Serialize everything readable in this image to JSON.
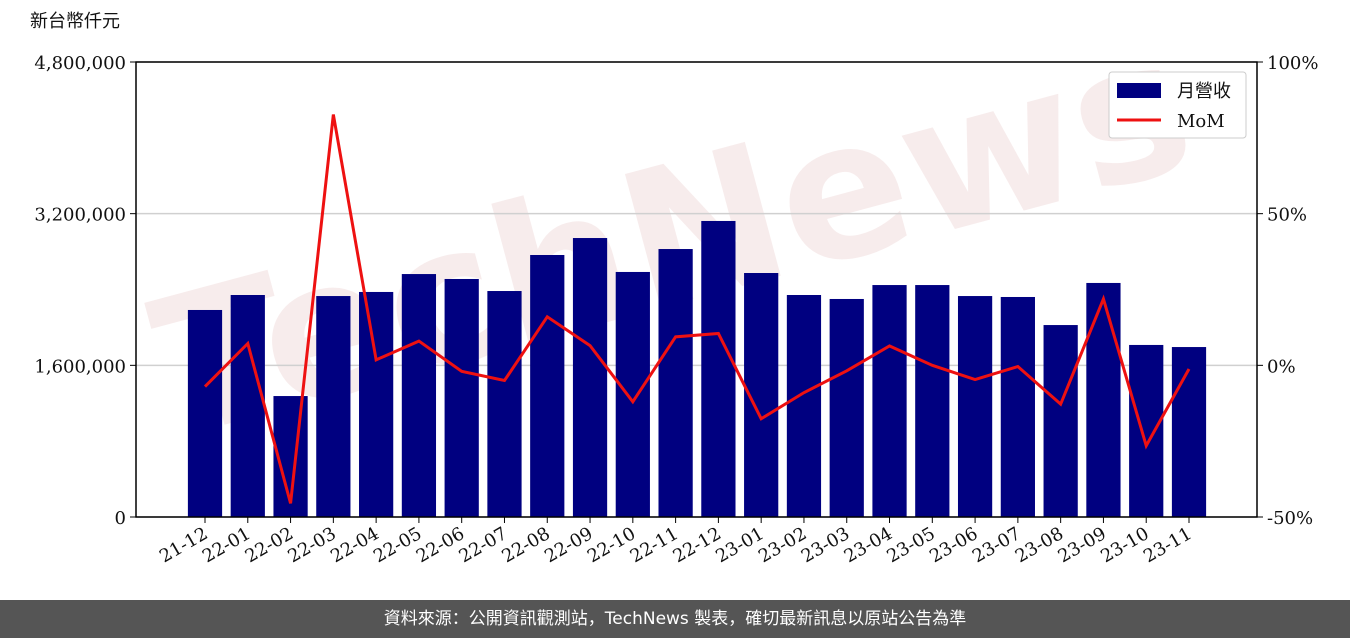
{
  "chart_data": {
    "type": "bar",
    "watermark": "TechNews",
    "y_label": "新台幣仟元",
    "source": "資料來源：公開資訊觀測站，TechNews 製表，確切最新訊息以原站公告為準",
    "categories": [
      "21-12",
      "22-01",
      "22-02",
      "22-03",
      "22-04",
      "22-05",
      "22-06",
      "22-07",
      "22-08",
      "22-09",
      "22-10",
      "22-11",
      "22-12",
      "23-01",
      "23-02",
      "23-03",
      "23-04",
      "23-05",
      "23-06",
      "23-07",
      "23-08",
      "23-09",
      "23-10",
      "23-11"
    ],
    "series": [
      {
        "name": "月營收",
        "type": "bar",
        "color": "#000080",
        "axis": "y",
        "values": [
          2184000,
          2342000,
          1276000,
          2331000,
          2374000,
          2563000,
          2511000,
          2384000,
          2764000,
          2943000,
          2585000,
          2827000,
          3123000,
          2574000,
          2342000,
          2300000,
          2447000,
          2447000,
          2331000,
          2321000,
          2025000,
          2469000,
          1815000,
          1793000
        ]
      },
      {
        "name": "MoM",
        "type": "line",
        "color": "#ee1111",
        "axis": "y2",
        "values": [
          -7,
          7.2,
          -45.5,
          82.7,
          1.8,
          8,
          -2,
          -5,
          16,
          6.5,
          -12,
          9.4,
          10.5,
          -17.6,
          -9,
          -1.8,
          6.4,
          0,
          -4.7,
          -0.4,
          -12.8,
          21.9,
          -26.5,
          -1.2
        ]
      }
    ],
    "ylim": [
      0,
      4800000
    ],
    "yticks": [
      0,
      {
        "value": 1600000,
        "label": "1,600,000"
      },
      {
        "value": 3200000,
        "label": "3,200,000"
      },
      {
        "value": 4800000,
        "label": "4,800,000"
      }
    ],
    "y2lim": [
      -50,
      100
    ],
    "y2ticks": [
      {
        "value": -50,
        "label": "-50%"
      },
      {
        "value": 0,
        "label": "0%"
      },
      {
        "value": 50,
        "label": "50%"
      },
      {
        "value": 100,
        "label": "100%"
      }
    ],
    "grid": true,
    "legend": "upper-right"
  }
}
